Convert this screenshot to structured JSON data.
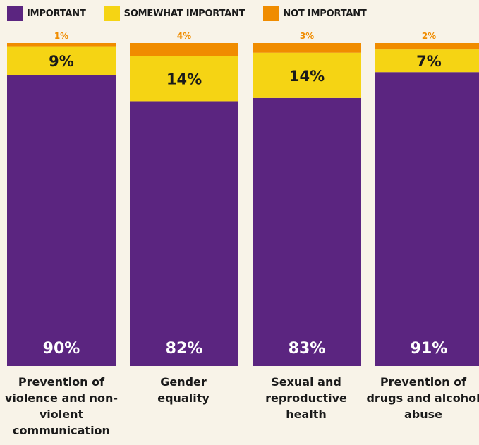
{
  "legend": [
    {
      "label": "IMPORTANT",
      "color": "#5b2580"
    },
    {
      "label": "SOMEWHAT IMPORTANT",
      "color": "#f5d414"
    },
    {
      "label": "NOT IMPORTANT",
      "color": "#f08c00"
    }
  ],
  "chart_data": {
    "type": "bar",
    "stacked": true,
    "categories": [
      "Prevention of violence and non-violent communication",
      "Gender equality",
      "Sexual and reproductive health",
      "Prevention of drugs and alcohol abuse"
    ],
    "series": [
      {
        "name": "IMPORTANT",
        "color": "#5b2580",
        "values": [
          90,
          82,
          83,
          91
        ],
        "labels": [
          "90%",
          "82%",
          "83%",
          "91%"
        ]
      },
      {
        "name": "SOMEWHAT IMPORTANT",
        "color": "#f5d414",
        "values": [
          9,
          14,
          14,
          7
        ],
        "labels": [
          "9%",
          "14%",
          "14%",
          "7%"
        ]
      },
      {
        "name": "NOT IMPORTANT",
        "color": "#f08c00",
        "values": [
          1,
          4,
          3,
          2
        ],
        "labels": [
          "1%",
          "4%",
          "3%",
          "2%"
        ]
      }
    ],
    "ylim": [
      0,
      100
    ],
    "grid": false,
    "legend_position": "top-left"
  }
}
